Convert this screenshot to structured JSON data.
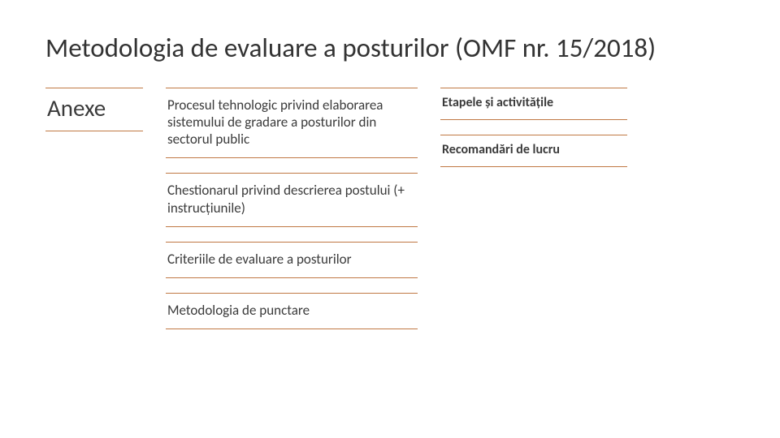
{
  "colors": {
    "background": "#ffffff",
    "text": "#3b3b3b",
    "divider": "#c07844"
  },
  "typography": {
    "title_fontsize": 33,
    "left_fontsize": 29,
    "mid_fontsize": 17,
    "right_fontsize": 16,
    "right_fontweight": 700
  },
  "title": "Metodologia de evaluare a posturilor (OMF nr. 15/2018)",
  "left": {
    "heading": "Anexe"
  },
  "mid": {
    "items": [
      "Procesul tehnologic privind elaborarea sistemului de gradare a posturilor din sectorul public",
      "Chestionarul privind descrierea postului (+ instrucțiunile)",
      "Criteriile de evaluare a posturilor",
      "Metodologia de punctare"
    ]
  },
  "right": {
    "items": [
      "Etapele și activitățile",
      "Recomandări de lucru"
    ]
  }
}
